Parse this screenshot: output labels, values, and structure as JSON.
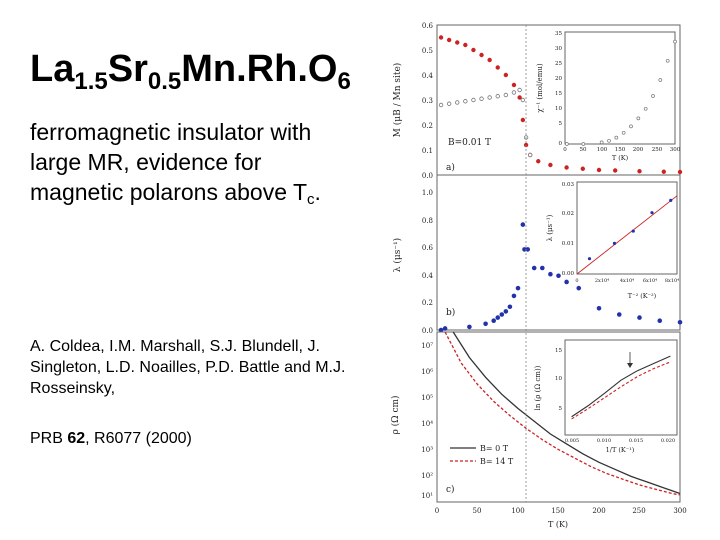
{
  "slide": {
    "title": {
      "base1": "La",
      "sub1": "1.5",
      "base2": "Sr",
      "sub2": "0.5",
      "base3": "Mn.Rh.O",
      "sub3": "6"
    },
    "description": {
      "text": "ferromagnetic insulator with large MR, evidence for magnetic polarons above T",
      "sub": "c",
      "end": "."
    },
    "authors": "A. Coldea, I.M. Marshall, S.J. Blundell, J. Singleton, L.D. Noailles, P.D. Battle and M.J. Rosseinsky,",
    "reference": {
      "journal": "PRB ",
      "volume": "62",
      "pages": ", R6077 (2000)"
    }
  },
  "figure": {
    "panel_a": {
      "label": "a)",
      "ylabel": "M (μB / Mn site)",
      "yticks": [
        "0.6",
        "0.5",
        "0.4",
        "0.3",
        "0.2",
        "0.1",
        "0.0"
      ],
      "annotation": "B=0.01 T",
      "inset": {
        "ylabel": "χ⁻¹ (mol/emu)",
        "yticks": [
          "35",
          "30",
          "25",
          "20",
          "15",
          "10",
          "5",
          "0"
        ],
        "xticks": [
          "0",
          "50",
          "100",
          "150",
          "200",
          "250",
          "300"
        ],
        "xlabel": "T (K)"
      }
    },
    "panel_b": {
      "label": "b)",
      "ylabel": "λ (μs⁻¹)",
      "yticks": [
        "1.0",
        "0.8",
        "0.6",
        "0.4",
        "0.2",
        "0.0"
      ],
      "inset": {
        "ylabel": "λ (μs⁻¹)",
        "yticks": [
          "0.03",
          "0.02",
          "0.01",
          "0.00"
        ],
        "xticks": [
          "0",
          "2x10⁴",
          "4x10⁴",
          "6x10⁴",
          "8x10⁴"
        ],
        "xlabel": "T⁻² (K⁻²)"
      }
    },
    "panel_c": {
      "label": "c)",
      "ylabel": "ρ (Ω cm)",
      "yticks": [
        "10⁷",
        "10⁶",
        "10⁵",
        "10⁴",
        "10³",
        "10²",
        "10¹"
      ],
      "legend": [
        "B= 0 T",
        "B= 14 T"
      ],
      "xticks": [
        "0",
        "50",
        "100",
        "150",
        "200",
        "250",
        "300"
      ],
      "xlabel": "T (K)",
      "inset": {
        "ylabel": "ln (ρ (Ω cm))",
        "yticks": [
          "15",
          "10",
          "5"
        ],
        "xticks": [
          "0.005",
          "0.010",
          "0.015",
          "0.020"
        ],
        "xlabel": "1/T (K⁻¹)"
      }
    }
  },
  "chart_data": [
    {
      "type": "scatter",
      "panel": "a",
      "ylabel": "M (μB / Mn site)",
      "xlim": [
        0,
        300
      ],
      "ylim": [
        0,
        0.6
      ],
      "series": [
        {
          "points": [
            [
              5,
              0.55
            ],
            [
              15,
              0.54
            ],
            [
              25,
              0.53
            ],
            [
              35,
              0.52
            ],
            [
              45,
              0.5
            ],
            [
              55,
              0.48
            ],
            [
              65,
              0.46
            ],
            [
              75,
              0.43
            ],
            [
              85,
              0.4
            ],
            [
              95,
              0.36
            ],
            [
              102,
              0.31
            ],
            [
              106,
              0.22
            ],
            [
              110,
              0.12
            ],
            [
              115,
              0.08
            ],
            [
              125,
              0.055
            ],
            [
              140,
              0.04
            ],
            [
              160,
              0.03
            ],
            [
              180,
              0.025
            ],
            [
              200,
              0.02
            ],
            [
              220,
              0.018
            ],
            [
              250,
              0.015
            ],
            [
              280,
              0.013
            ],
            [
              300,
              0.012
            ]
          ]
        },
        {
          "points": [
            [
              5,
              0.28
            ],
            [
              15,
              0.285
            ],
            [
              25,
              0.29
            ],
            [
              35,
              0.295
            ],
            [
              45,
              0.3
            ],
            [
              55,
              0.305
            ],
            [
              65,
              0.31
            ],
            [
              75,
              0.315
            ],
            [
              85,
              0.32
            ],
            [
              95,
              0.33
            ],
            [
              102,
              0.34
            ],
            [
              106,
              0.3
            ],
            [
              110,
              0.15
            ],
            [
              115,
              0.08
            ]
          ]
        }
      ]
    },
    {
      "type": "scatter",
      "panel": "a-inset",
      "ylabel": "χ⁻¹ (mol/emu)",
      "xlabel": "T (K)",
      "xlim": [
        0,
        300
      ],
      "ylim": [
        0,
        35
      ],
      "points": [
        [
          5,
          0
        ],
        [
          50,
          0
        ],
        [
          100,
          0.5
        ],
        [
          120,
          1
        ],
        [
          140,
          2
        ],
        [
          160,
          3.5
        ],
        [
          180,
          5.5
        ],
        [
          200,
          8
        ],
        [
          220,
          11
        ],
        [
          240,
          15
        ],
        [
          260,
          20
        ],
        [
          280,
          26
        ],
        [
          300,
          32
        ]
      ]
    },
    {
      "type": "scatter",
      "panel": "b",
      "ylabel": "λ (μs⁻¹)",
      "xlim": [
        0,
        300
      ],
      "ylim": [
        0,
        1.0
      ],
      "points": [
        [
          5,
          0
        ],
        [
          10,
          0.01
        ],
        [
          40,
          0.02
        ],
        [
          60,
          0.04
        ],
        [
          70,
          0.06
        ],
        [
          75,
          0.08
        ],
        [
          80,
          0.1
        ],
        [
          85,
          0.12
        ],
        [
          90,
          0.15
        ],
        [
          95,
          0.22
        ],
        [
          100,
          0.27
        ],
        [
          106,
          0.68
        ],
        [
          108,
          0.52
        ],
        [
          112,
          0.52
        ],
        [
          120,
          0.4
        ],
        [
          130,
          0.4
        ],
        [
          140,
          0.36
        ],
        [
          150,
          0.35
        ],
        [
          160,
          0.31
        ],
        [
          175,
          0.27
        ],
        [
          200,
          0.14
        ],
        [
          225,
          0.1
        ],
        [
          250,
          0.08
        ],
        [
          275,
          0.06
        ],
        [
          300,
          0.05
        ]
      ]
    },
    {
      "type": "scatter",
      "panel": "b-inset",
      "ylabel": "λ (μs⁻¹)",
      "xlabel": "T⁻² (K⁻²)",
      "xlim": [
        0,
        80000
      ],
      "ylim": [
        0,
        0.03
      ],
      "points": [
        [
          10000,
          0.005
        ],
        [
          30000,
          0.01
        ],
        [
          45000,
          0.014
        ],
        [
          60000,
          0.02
        ],
        [
          75000,
          0.024
        ]
      ]
    },
    {
      "type": "line",
      "panel": "c",
      "ylabel": "ρ (Ω cm)",
      "xlabel": "T (K)",
      "xlim": [
        0,
        300
      ],
      "ylim_log10": [
        1,
        7
      ],
      "series": [
        {
          "name": "B= 0 T",
          "points": [
            [
              20,
              7.0
            ],
            [
              40,
              6.1
            ],
            [
              60,
              5.4
            ],
            [
              80,
              4.8
            ],
            [
              100,
              4.3
            ],
            [
              120,
              3.85
            ],
            [
              140,
              3.4
            ],
            [
              160,
              3.05
            ],
            [
              180,
              2.7
            ],
            [
              200,
              2.4
            ],
            [
              220,
              2.15
            ],
            [
              240,
              1.9
            ],
            [
              260,
              1.7
            ],
            [
              280,
              1.5
            ],
            [
              300,
              1.3
            ]
          ]
        },
        {
          "name": "B= 14 T",
          "points": [
            [
              10,
              7.0
            ],
            [
              30,
              5.9
            ],
            [
              50,
              5.15
            ],
            [
              70,
              4.55
            ],
            [
              90,
              4.05
            ],
            [
              110,
              3.6
            ],
            [
              130,
              3.2
            ],
            [
              150,
              2.85
            ],
            [
              170,
              2.55
            ],
            [
              190,
              2.25
            ],
            [
              210,
              2.0
            ],
            [
              230,
              1.8
            ],
            [
              250,
              1.6
            ],
            [
              270,
              1.45
            ],
            [
              290,
              1.3
            ],
            [
              300,
              1.25
            ]
          ]
        }
      ]
    },
    {
      "type": "line",
      "panel": "c-inset",
      "ylabel": "ln (ρ (Ω cm))",
      "xlabel": "1/T (K⁻¹)",
      "xlim": [
        0.005,
        0.02
      ],
      "ylim": [
        5,
        15
      ],
      "series": [
        {
          "name": "B= 0 T",
          "points": [
            [
              0.005,
              5.5
            ],
            [
              0.0075,
              7.0
            ],
            [
              0.01,
              8.7
            ],
            [
              0.0125,
              10.5
            ],
            [
              0.015,
              11.8
            ],
            [
              0.0175,
              12.8
            ],
            [
              0.02,
              13.8
            ]
          ]
        },
        {
          "name": "B= 14 T",
          "points": [
            [
              0.005,
              5.2
            ],
            [
              0.0075,
              6.6
            ],
            [
              0.01,
              8.1
            ],
            [
              0.0125,
              9.6
            ],
            [
              0.015,
              11.0
            ],
            [
              0.0175,
              12.1
            ],
            [
              0.02,
              13.0
            ]
          ]
        }
      ]
    }
  ]
}
